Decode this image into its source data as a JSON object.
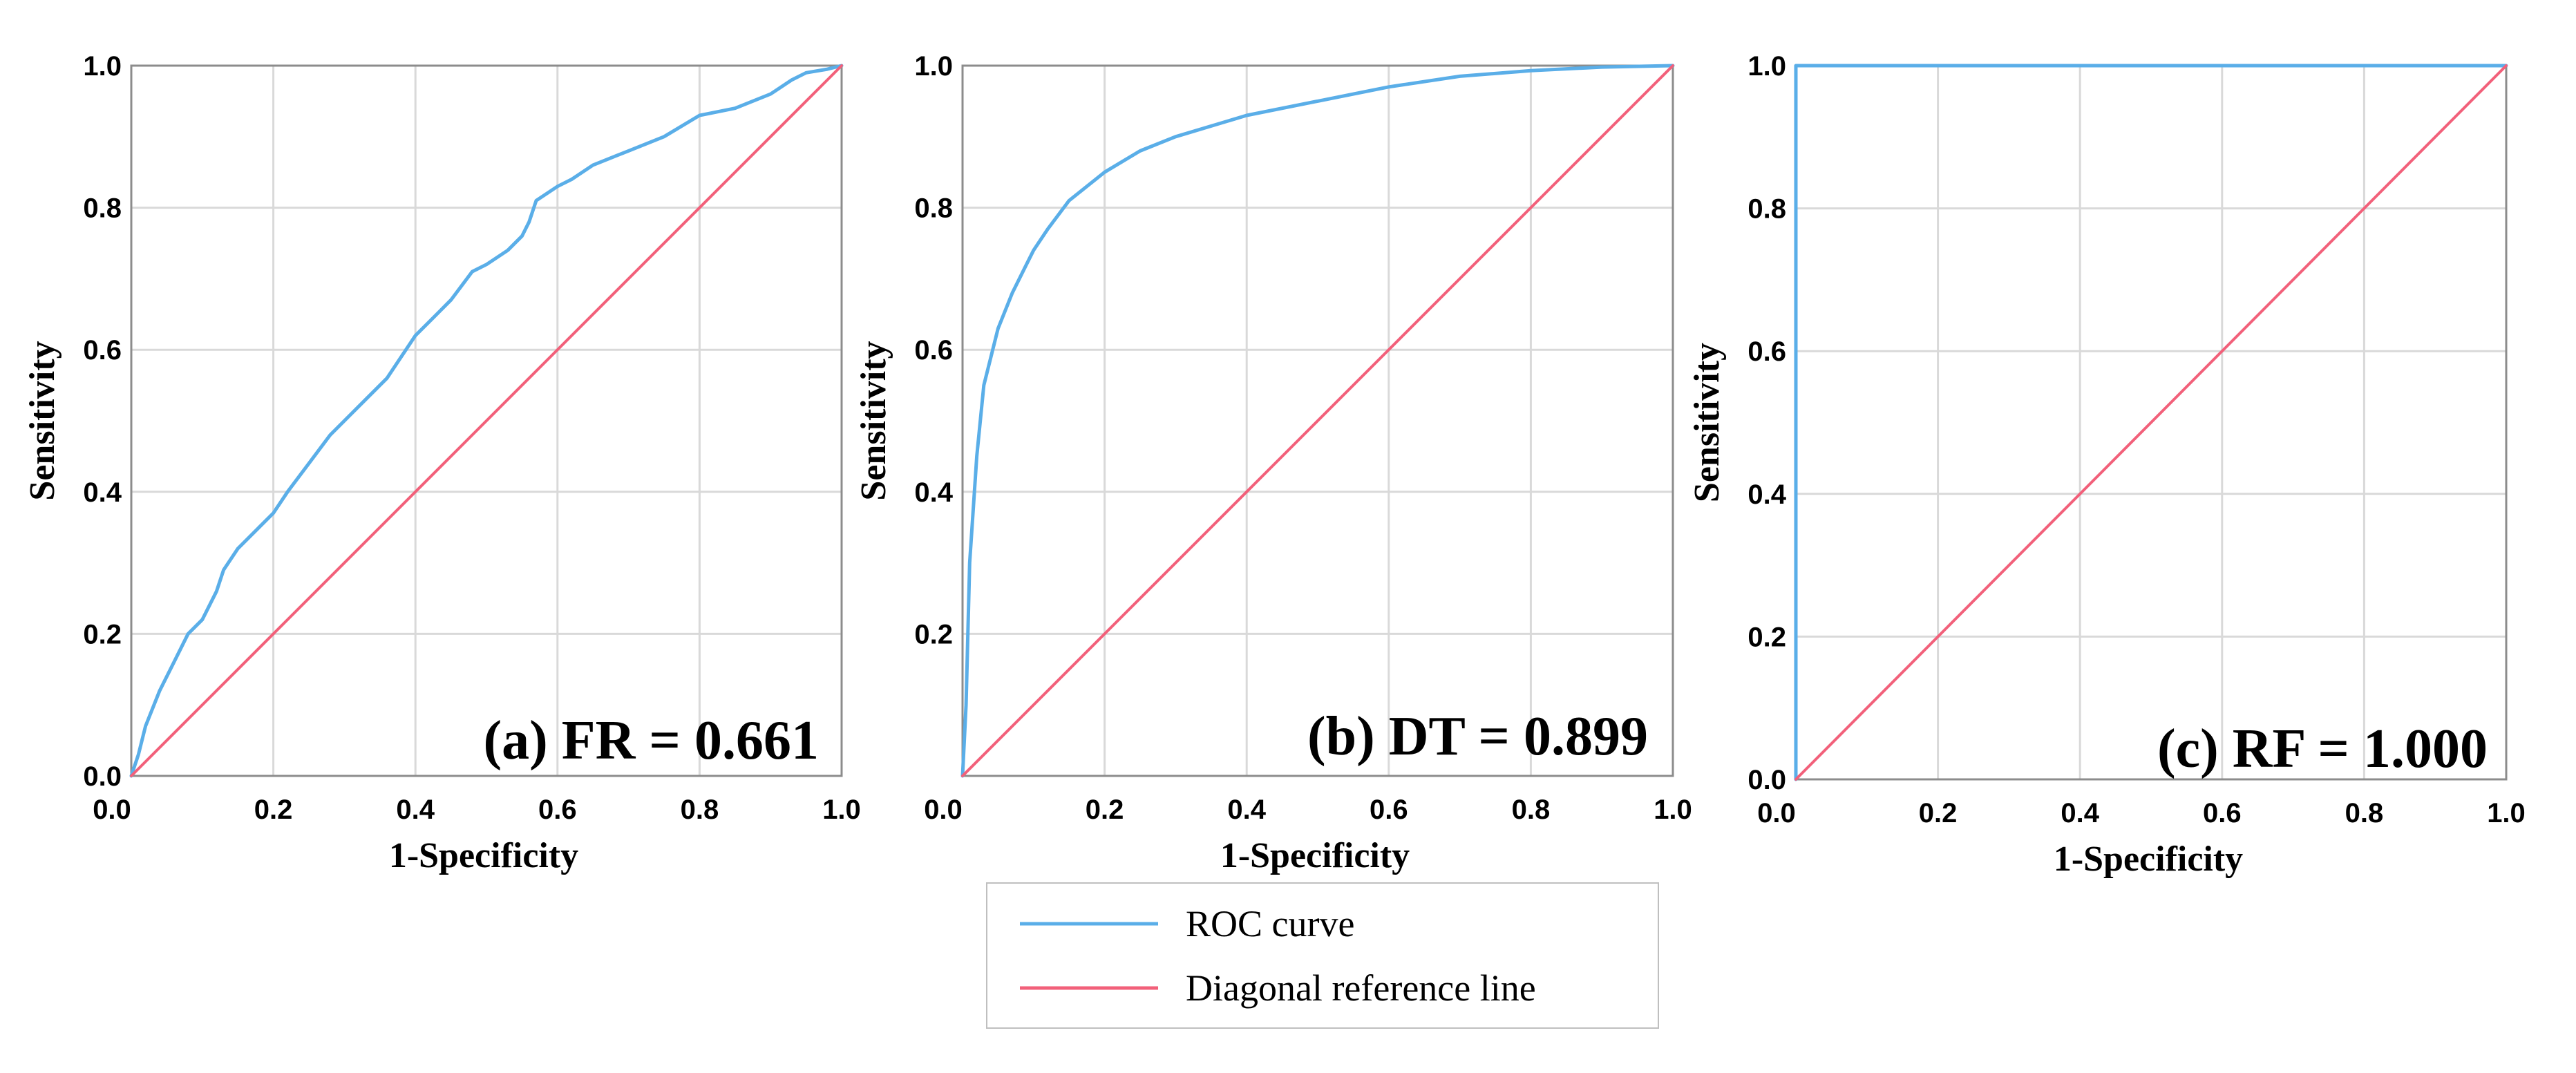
{
  "colors": {
    "roc": "#5aaee8",
    "diagonal": "#f2607a",
    "grid": "#d9d9d9",
    "axis": "#8c8c8c"
  },
  "chart_data": [
    {
      "type": "line",
      "panel": "a",
      "label": "(a) FR = 0.661",
      "xlabel": "1-Specificity",
      "ylabel": "Sensitivity",
      "xlim": [
        0,
        1
      ],
      "ylim": [
        0,
        1
      ],
      "x_ticks": [
        "0.0",
        "0.2",
        "0.4",
        "0.6",
        "0.8",
        "1.0"
      ],
      "y_ticks": [
        "0.0",
        "0.2",
        "0.4",
        "0.6",
        "0.8",
        "1.0"
      ],
      "grid": true,
      "series": [
        {
          "name": "ROC curve",
          "x": [
            0,
            0.01,
            0.02,
            0.04,
            0.06,
            0.08,
            0.1,
            0.12,
            0.13,
            0.15,
            0.18,
            0.2,
            0.22,
            0.25,
            0.28,
            0.3,
            0.33,
            0.36,
            0.38,
            0.4,
            0.42,
            0.45,
            0.48,
            0.5,
            0.53,
            0.55,
            0.56,
            0.57,
            0.6,
            0.62,
            0.65,
            0.7,
            0.75,
            0.8,
            0.85,
            0.9,
            0.93,
            0.95,
            0.98,
            1.0
          ],
          "y": [
            0,
            0.03,
            0.07,
            0.12,
            0.16,
            0.2,
            0.22,
            0.26,
            0.29,
            0.32,
            0.35,
            0.37,
            0.4,
            0.44,
            0.48,
            0.5,
            0.53,
            0.56,
            0.59,
            0.62,
            0.64,
            0.67,
            0.71,
            0.72,
            0.74,
            0.76,
            0.78,
            0.81,
            0.83,
            0.84,
            0.86,
            0.88,
            0.9,
            0.93,
            0.94,
            0.96,
            0.98,
            0.99,
            0.995,
            1.0
          ]
        },
        {
          "name": "Diagonal reference line",
          "x": [
            0,
            1
          ],
          "y": [
            0,
            1
          ]
        }
      ]
    },
    {
      "type": "line",
      "panel": "b",
      "label": "(b) DT = 0.899",
      "xlabel": "1-Specificity",
      "ylabel": "Sensitivity",
      "xlim": [
        0,
        1
      ],
      "ylim": [
        0,
        1
      ],
      "x_ticks": [
        "0.0",
        "0.2",
        "0.4",
        "0.6",
        "0.8",
        "1.0"
      ],
      "y_ticks": [
        "0.2",
        "0.4",
        "0.6",
        "0.8",
        "1.0"
      ],
      "grid": true,
      "series": [
        {
          "name": "ROC curve",
          "x": [
            0,
            0.005,
            0.01,
            0.02,
            0.03,
            0.05,
            0.07,
            0.09,
            0.1,
            0.12,
            0.15,
            0.2,
            0.25,
            0.3,
            0.4,
            0.5,
            0.6,
            0.7,
            0.8,
            0.9,
            1.0
          ],
          "y": [
            0,
            0.1,
            0.3,
            0.45,
            0.55,
            0.63,
            0.68,
            0.72,
            0.74,
            0.77,
            0.81,
            0.85,
            0.88,
            0.9,
            0.93,
            0.95,
            0.97,
            0.985,
            0.993,
            0.998,
            1.0
          ]
        },
        {
          "name": "Diagonal reference line",
          "x": [
            0,
            1
          ],
          "y": [
            0,
            1
          ]
        }
      ]
    },
    {
      "type": "line",
      "panel": "c",
      "label": "(c) RF = 1.000",
      "xlabel": "1-Specificity",
      "ylabel": "Sensitivity",
      "xlim": [
        0,
        1
      ],
      "ylim": [
        0,
        1
      ],
      "x_ticks": [
        "0.0",
        "0.2",
        "0.4",
        "0.6",
        "0.8",
        "1.0"
      ],
      "y_ticks": [
        "0.0",
        "0.2",
        "0.4",
        "0.6",
        "0.8",
        "1.0"
      ],
      "grid": true,
      "series": [
        {
          "name": "ROC curve",
          "x": [
            0,
            0,
            1
          ],
          "y": [
            0,
            1,
            1
          ]
        },
        {
          "name": "Diagonal reference line",
          "x": [
            0,
            1
          ],
          "y": [
            0,
            1
          ]
        }
      ]
    }
  ],
  "legend": {
    "items": [
      {
        "label": "ROC curve",
        "color": "#5aaee8"
      },
      {
        "label": "Diagonal reference line",
        "color": "#f2607a"
      }
    ]
  }
}
